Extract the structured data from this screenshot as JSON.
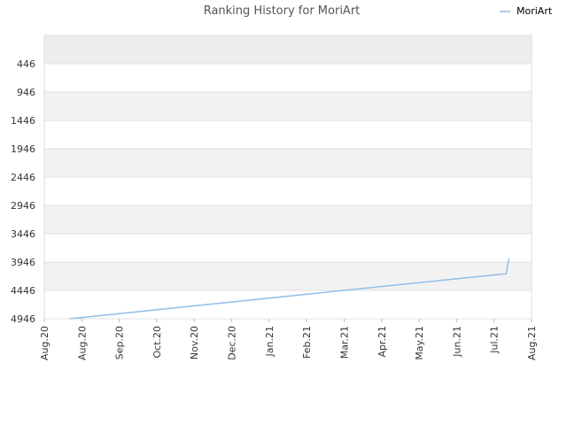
{
  "chart_data": {
    "type": "line",
    "title": "Ranking History for MoriArt",
    "xlabel": "",
    "ylabel": "",
    "y_inverted": true,
    "ylim": [
      4946,
      -54
    ],
    "y_ticks": [
      446,
      946,
      1446,
      1946,
      2446,
      2946,
      3446,
      3946,
      4446,
      4946
    ],
    "xlim": [
      "2020-08-01",
      "2021-08-01"
    ],
    "x_ticks": [
      "Aug.20",
      "Aug.20",
      "Sep.20",
      "Oct.20",
      "Nov.20",
      "Dec.20",
      "Jan.21",
      "Feb.21",
      "Mar.21",
      "Apr.21",
      "May.21",
      "Jun.21",
      "Jul.21",
      "Aug.21"
    ],
    "grid": true,
    "legend": {
      "position": "top-right"
    },
    "series": [
      {
        "name": "MoriArt",
        "color": "#90bde8",
        "x": [
          "2020-08-20",
          "2021-07-13",
          "2021-07-15"
        ],
        "y": [
          4946,
          4150,
          3880
        ]
      }
    ]
  }
}
